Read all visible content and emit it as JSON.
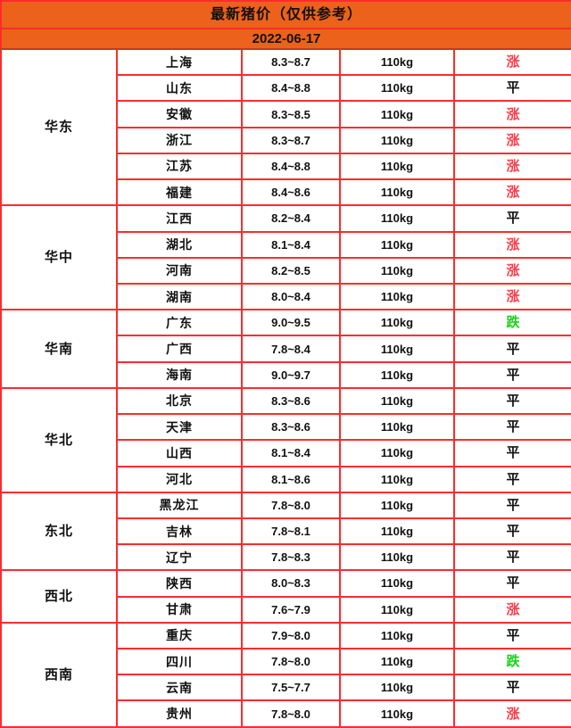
{
  "header": {
    "title": "最新猪价（仅供参考）",
    "date": "2022-06-17"
  },
  "columns": {
    "region_width": 130,
    "province_width": 140,
    "price_width": 110,
    "weight_width": 128,
    "trend_width": 132
  },
  "colors": {
    "header_bg": "#ec611b",
    "border_red": "#fd2c2c",
    "trend_up_red": "#fb3c4c",
    "trend_down_green": "#15d415",
    "text_black": "#111111"
  },
  "trend_labels": {
    "up": "涨",
    "flat": "平",
    "down": "跌"
  },
  "regions": [
    {
      "name": "华东",
      "rows": [
        {
          "province": "上海",
          "price": "8.3~8.7",
          "weight": "110kg",
          "trend": "涨",
          "trend_type": "up"
        },
        {
          "province": "山东",
          "price": "8.4~8.8",
          "weight": "110kg",
          "trend": "平",
          "trend_type": "flat"
        },
        {
          "province": "安徽",
          "price": "8.3~8.5",
          "weight": "110kg",
          "trend": "涨",
          "trend_type": "up"
        },
        {
          "province": "浙江",
          "price": "8.3~8.7",
          "weight": "110kg",
          "trend": "涨",
          "trend_type": "up"
        },
        {
          "province": "江苏",
          "price": "8.4~8.8",
          "weight": "110kg",
          "trend": "涨",
          "trend_type": "up"
        },
        {
          "province": "福建",
          "price": "8.4~8.6",
          "weight": "110kg",
          "trend": "涨",
          "trend_type": "up"
        }
      ]
    },
    {
      "name": "华中",
      "rows": [
        {
          "province": "江西",
          "price": "8.2~8.4",
          "weight": "110kg",
          "trend": "平",
          "trend_type": "flat"
        },
        {
          "province": "湖北",
          "price": "8.1~8.4",
          "weight": "110kg",
          "trend": "涨",
          "trend_type": "up"
        },
        {
          "province": "河南",
          "price": "8.2~8.5",
          "weight": "110kg",
          "trend": "涨",
          "trend_type": "up"
        },
        {
          "province": "湖南",
          "price": "8.0~8.4",
          "weight": "110kg",
          "trend": "涨",
          "trend_type": "up"
        }
      ]
    },
    {
      "name": "华南",
      "rows": [
        {
          "province": "广东",
          "price": "9.0~9.5",
          "weight": "110kg",
          "trend": "跌",
          "trend_type": "down"
        },
        {
          "province": "广西",
          "price": "7.8~8.4",
          "weight": "110kg",
          "trend": "平",
          "trend_type": "flat"
        },
        {
          "province": "海南",
          "price": "9.0~9.7",
          "weight": "110kg",
          "trend": "平",
          "trend_type": "flat"
        }
      ]
    },
    {
      "name": "华北",
      "rows": [
        {
          "province": "北京",
          "price": "8.3~8.6",
          "weight": "110kg",
          "trend": "平",
          "trend_type": "flat"
        },
        {
          "province": "天津",
          "price": "8.3~8.6",
          "weight": "110kg",
          "trend": "平",
          "trend_type": "flat"
        },
        {
          "province": "山西",
          "price": "8.1~8.4",
          "weight": "110kg",
          "trend": "平",
          "trend_type": "flat"
        },
        {
          "province": "河北",
          "price": "8.1~8.6",
          "weight": "110kg",
          "trend": "平",
          "trend_type": "flat"
        }
      ]
    },
    {
      "name": "东北",
      "rows": [
        {
          "province": "黑龙江",
          "price": "7.8~8.0",
          "weight": "110kg",
          "trend": "平",
          "trend_type": "flat"
        },
        {
          "province": "吉林",
          "price": "7.8~8.1",
          "weight": "110kg",
          "trend": "平",
          "trend_type": "flat"
        },
        {
          "province": "辽宁",
          "price": "7.8~8.3",
          "weight": "110kg",
          "trend": "平",
          "trend_type": "flat"
        }
      ]
    },
    {
      "name": "西北",
      "rows": [
        {
          "province": "陕西",
          "price": "8.0~8.3",
          "weight": "110kg",
          "trend": "平",
          "trend_type": "flat"
        },
        {
          "province": "甘肃",
          "price": "7.6~7.9",
          "weight": "110kg",
          "trend": "涨",
          "trend_type": "up"
        }
      ]
    },
    {
      "name": "西南",
      "rows": [
        {
          "province": "重庆",
          "price": "7.9~8.0",
          "weight": "110kg",
          "trend": "平",
          "trend_type": "flat"
        },
        {
          "province": "四川",
          "price": "7.8~8.0",
          "weight": "110kg",
          "trend": "跌",
          "trend_type": "down"
        },
        {
          "province": "云南",
          "price": "7.5~7.7",
          "weight": "110kg",
          "trend": "平",
          "trend_type": "flat"
        },
        {
          "province": "贵州",
          "price": "7.8~8.0",
          "weight": "110kg",
          "trend": "涨",
          "trend_type": "up"
        }
      ]
    }
  ]
}
